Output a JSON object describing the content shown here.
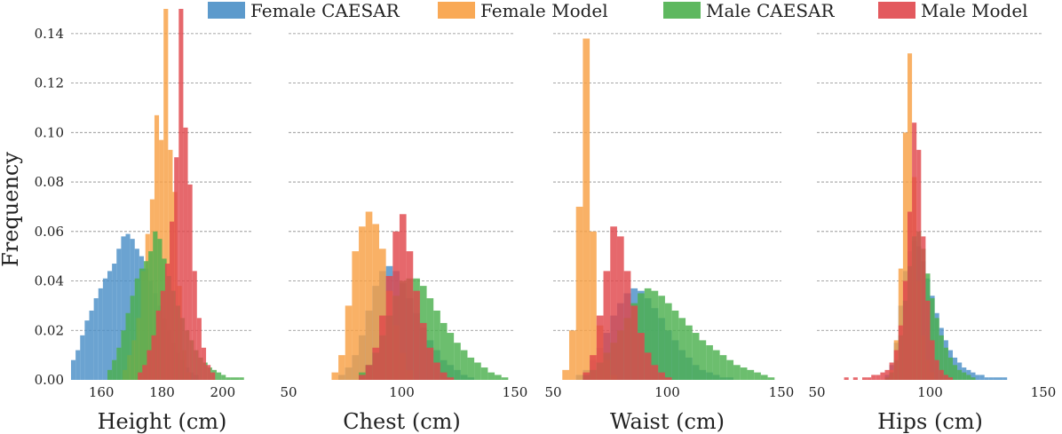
{
  "chart_data": {
    "type": "histogram",
    "ylabel": "Frequency",
    "ylim": [
      0,
      0.15
    ],
    "yticks": [
      "0.00",
      "0.02",
      "0.04",
      "0.06",
      "0.08",
      "0.10",
      "0.12",
      "0.14"
    ],
    "grid": "horizontal dashed",
    "legend_position": "top",
    "series": [
      {
        "name": "Female CAESAR",
        "color": "#4a8fc7"
      },
      {
        "name": "Female Model",
        "color": "#f8a044"
      },
      {
        "name": "Male CAESAR",
        "color": "#4cb04e"
      },
      {
        "name": "Male Model",
        "color": "#e0474c"
      }
    ],
    "panels": [
      {
        "xlabel": "Height (cm)",
        "xlim": [
          150,
          210
        ],
        "xticks": [
          "160",
          "180",
          "200"
        ],
        "bin_width": 1.5,
        "hist": [
          {
            "series": "Female CAESAR",
            "start": 150,
            "values": [
              0.008,
              0.012,
              0.018,
              0.024,
              0.028,
              0.033,
              0.037,
              0.041,
              0.044,
              0.047,
              0.053,
              0.058,
              0.059,
              0.057,
              0.053,
              0.05,
              0.045,
              0.04,
              0.035,
              0.03,
              0.025,
              0.02,
              0.015,
              0.011,
              0.008,
              0.005,
              0.003,
              0.002
            ]
          },
          {
            "series": "Female Model",
            "start": 167,
            "values": [
              0.004,
              0.01,
              0.016,
              0.025,
              0.044,
              0.059,
              0.073,
              0.107,
              0.097,
              0.15,
              0.093,
              0.076,
              0.038,
              0.012,
              0.003
            ]
          },
          {
            "series": "Male CAESAR",
            "start": 162,
            "values": [
              0.004,
              0.008,
              0.013,
              0.02,
              0.027,
              0.034,
              0.041,
              0.045,
              0.048,
              0.052,
              0.06,
              0.057,
              0.049,
              0.042,
              0.036,
              0.03,
              0.025,
              0.02,
              0.016,
              0.012,
              0.009,
              0.007,
              0.005,
              0.004,
              0.003,
              0.002,
              0.001,
              0.001,
              0.001,
              0.001
            ]
          },
          {
            "series": "Male Model",
            "start": 172,
            "values": [
              0.003,
              0.006,
              0.012,
              0.018,
              0.028,
              0.036,
              0.047,
              0.064,
              0.09,
              0.15,
              0.102,
              0.079,
              0.044,
              0.025,
              0.013,
              0.006,
              0.003
            ]
          }
        ]
      },
      {
        "xlabel": "Chest (cm)",
        "xlim": [
          50,
          150
        ],
        "xticks": [
          "50",
          "100",
          "150"
        ],
        "bin_width": 3,
        "hist": [
          {
            "series": "Female CAESAR",
            "start": 72,
            "values": [
              0.002,
              0.005,
              0.01,
              0.018,
              0.028,
              0.038,
              0.044,
              0.046,
              0.044,
              0.039,
              0.033,
              0.027,
              0.021,
              0.016,
              0.012,
              0.008,
              0.006,
              0.004,
              0.002,
              0.001
            ]
          },
          {
            "series": "Female Model",
            "start": 69,
            "values": [
              0.003,
              0.01,
              0.03,
              0.052,
              0.062,
              0.068,
              0.063,
              0.053,
              0.036,
              0.022,
              0.011,
              0.004
            ]
          },
          {
            "series": "Male CAESAR",
            "start": 81,
            "values": [
              0.003,
              0.006,
              0.011,
              0.018,
              0.026,
              0.034,
              0.04,
              0.041,
              0.041,
              0.038,
              0.033,
              0.028,
              0.023,
              0.019,
              0.015,
              0.012,
              0.009,
              0.007,
              0.005,
              0.003,
              0.002,
              0.001
            ]
          },
          {
            "series": "Male Model",
            "start": 81,
            "values": [
              0.002,
              0.006,
              0.013,
              0.026,
              0.042,
              0.06,
              0.067,
              0.052,
              0.036,
              0.023,
              0.013,
              0.007,
              0.003,
              0.001
            ]
          }
        ]
      },
      {
        "xlabel": "Waist (cm)",
        "xlim": [
          50,
          150
        ],
        "xticks": [
          "50",
          "100",
          "150"
        ],
        "bin_width": 3,
        "hist": [
          {
            "series": "Female CAESAR",
            "start": 60,
            "values": [
              0.002,
              0.004,
              0.008,
              0.013,
              0.019,
              0.026,
              0.031,
              0.035,
              0.037,
              0.036,
              0.033,
              0.029,
              0.025,
              0.02,
              0.016,
              0.012,
              0.009,
              0.006,
              0.004,
              0.003,
              0.002,
              0.001,
              0.001
            ]
          },
          {
            "series": "Female Model",
            "start": 54,
            "values": [
              0.004,
              0.02,
              0.07,
              0.138,
              0.06,
              0.022,
              0.008,
              0.002
            ]
          },
          {
            "series": "Male CAESAR",
            "start": 63,
            "values": [
              0.002,
              0.004,
              0.007,
              0.011,
              0.015,
              0.02,
              0.025,
              0.031,
              0.035,
              0.037,
              0.036,
              0.034,
              0.031,
              0.028,
              0.025,
              0.022,
              0.019,
              0.016,
              0.014,
              0.012,
              0.01,
              0.008,
              0.006,
              0.005,
              0.004,
              0.003,
              0.002,
              0.001
            ]
          },
          {
            "series": "Male Model",
            "start": 63,
            "values": [
              0.003,
              0.01,
              0.026,
              0.044,
              0.062,
              0.058,
              0.044,
              0.03,
              0.019,
              0.011,
              0.006,
              0.003,
              0.001
            ]
          }
        ]
      },
      {
        "xlabel": "Hips (cm)",
        "xlim": [
          50,
          150
        ],
        "xticks": [
          "50",
          "100",
          "150"
        ],
        "bin_width": 2,
        "hist": [
          {
            "series": "Female CAESAR",
            "start": 80,
            "values": [
              0.002,
              0.006,
              0.015,
              0.03,
              0.044,
              0.052,
              0.056,
              0.054,
              0.048,
              0.041,
              0.034,
              0.027,
              0.021,
              0.016,
              0.012,
              0.009,
              0.007,
              0.005,
              0.004,
              0.003,
              0.002,
              0.002,
              0.001,
              0.001,
              0.001,
              0.001,
              0.001
            ]
          },
          {
            "series": "Female Model",
            "start": 82,
            "values": [
              0.004,
              0.016,
              0.045,
              0.1,
              0.132,
              0.082,
              0.04,
              0.018,
              0.008,
              0.003
            ]
          },
          {
            "series": "Male CAESAR",
            "start": 80,
            "values": [
              0.001,
              0.003,
              0.008,
              0.018,
              0.032,
              0.046,
              0.058,
              0.06,
              0.053,
              0.043,
              0.033,
              0.025,
              0.018,
              0.013,
              0.009,
              0.006,
              0.004,
              0.003,
              0.002,
              0.001
            ]
          },
          {
            "series": "Male Model",
            "start": 62,
            "values": [
              0.001,
              0,
              0.001,
              0,
              0.001,
              0.001,
              0.002,
              0.002,
              0.003,
              0.004,
              0.007,
              0.012,
              0.022,
              0.04,
              0.068,
              0.104,
              0.093,
              0.058,
              0.032,
              0.016,
              0.008,
              0.004,
              0.002,
              0.001
            ]
          }
        ]
      }
    ]
  }
}
